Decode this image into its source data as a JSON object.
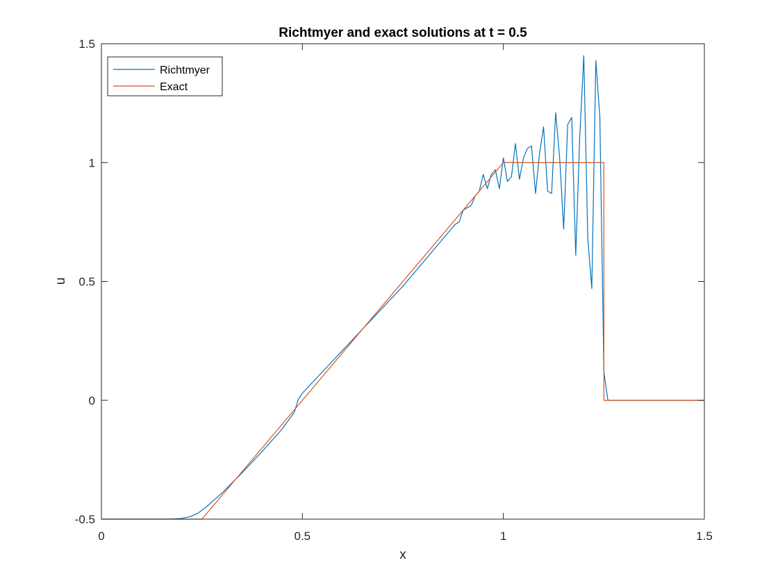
{
  "chart_data": {
    "type": "line",
    "title": "Richtmyer and exact solutions at t = 0.5",
    "xlabel": "x",
    "ylabel": "u",
    "xlim": [
      0,
      1.5
    ],
    "ylim": [
      -0.5,
      1.5
    ],
    "xticks": [
      0,
      0.5,
      1,
      1.5
    ],
    "xtick_labels": [
      "0",
      "0.5",
      "1",
      "1.5"
    ],
    "yticks": [
      -0.5,
      0,
      0.5,
      1,
      1.5
    ],
    "ytick_labels": [
      "-0.5",
      "0",
      "0.5",
      "1",
      "1.5"
    ],
    "grid": false,
    "legend_position": "top-left",
    "series": [
      {
        "name": "Richtmyer",
        "color": "#0072BD",
        "x": [
          0,
          0.05,
          0.1,
          0.15,
          0.18,
          0.2,
          0.22,
          0.24,
          0.26,
          0.28,
          0.3,
          0.35,
          0.4,
          0.45,
          0.48,
          0.49,
          0.5,
          0.55,
          0.6,
          0.65,
          0.7,
          0.75,
          0.78,
          0.8,
          0.82,
          0.84,
          0.85,
          0.86,
          0.87,
          0.88,
          0.89,
          0.9,
          0.91,
          0.92,
          0.93,
          0.94,
          0.95,
          0.96,
          0.97,
          0.98,
          0.99,
          1.0,
          1.01,
          1.02,
          1.03,
          1.04,
          1.05,
          1.06,
          1.07,
          1.08,
          1.09,
          1.1,
          1.11,
          1.12,
          1.13,
          1.14,
          1.15,
          1.16,
          1.17,
          1.18,
          1.19,
          1.2,
          1.21,
          1.22,
          1.23,
          1.24,
          1.25,
          1.26,
          1.3,
          1.35,
          1.4,
          1.45,
          1.5
        ],
        "y": [
          -0.5,
          -0.5,
          -0.5,
          -0.5,
          -0.499,
          -0.497,
          -0.49,
          -0.475,
          -0.45,
          -0.42,
          -0.39,
          -0.305,
          -0.215,
          -0.12,
          -0.05,
          0.005,
          0.03,
          0.12,
          0.21,
          0.3,
          0.39,
          0.48,
          0.54,
          0.58,
          0.62,
          0.66,
          0.68,
          0.7,
          0.72,
          0.74,
          0.75,
          0.8,
          0.81,
          0.82,
          0.86,
          0.88,
          0.95,
          0.89,
          0.95,
          0.97,
          0.89,
          1.02,
          0.92,
          0.94,
          1.08,
          0.93,
          1.02,
          1.06,
          1.07,
          0.87,
          1.04,
          1.15,
          0.88,
          0.87,
          1.21,
          1.02,
          0.72,
          1.16,
          1.19,
          0.61,
          1.11,
          1.45,
          0.68,
          0.47,
          1.43,
          1.19,
          0.12,
          0.0,
          0.0,
          0.0,
          0.0,
          0.0,
          0.0
        ]
      },
      {
        "name": "Exact",
        "color": "#D95319",
        "x": [
          0,
          0.25,
          1.0,
          1.25,
          1.25,
          1.5
        ],
        "y": [
          -0.5,
          -0.5,
          1.0,
          1.0,
          0.0,
          0.0
        ]
      }
    ]
  }
}
